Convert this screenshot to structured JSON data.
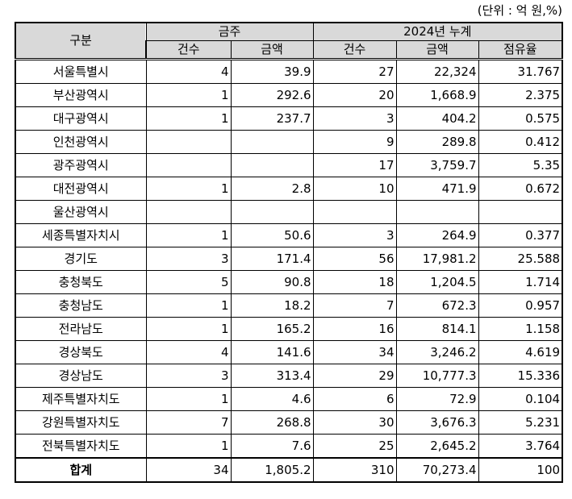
{
  "unit_note": "(단위 : 억 원,%)",
  "header": {
    "region": "구분",
    "group_week": "금주",
    "group_cum": "2024년 누계",
    "count": "건수",
    "amount": "금액",
    "share": "점유율"
  },
  "rows": [
    {
      "region": "서울특별시",
      "w_count": "4",
      "w_amount": "39.9",
      "c_count": "27",
      "c_amount": "22,324",
      "share": "31.767"
    },
    {
      "region": "부산광역시",
      "w_count": "1",
      "w_amount": "292.6",
      "c_count": "20",
      "c_amount": "1,668.9",
      "share": "2.375"
    },
    {
      "region": "대구광역시",
      "w_count": "1",
      "w_amount": "237.7",
      "c_count": "3",
      "c_amount": "404.2",
      "share": "0.575"
    },
    {
      "region": "인천광역시",
      "w_count": "",
      "w_amount": "",
      "c_count": "9",
      "c_amount": "289.8",
      "share": "0.412"
    },
    {
      "region": "광주광역시",
      "w_count": "",
      "w_amount": "",
      "c_count": "17",
      "c_amount": "3,759.7",
      "share": "5.35"
    },
    {
      "region": "대전광역시",
      "w_count": "1",
      "w_amount": "2.8",
      "c_count": "10",
      "c_amount": "471.9",
      "share": "0.672"
    },
    {
      "region": "울산광역시",
      "w_count": "",
      "w_amount": "",
      "c_count": "",
      "c_amount": "",
      "share": ""
    },
    {
      "region": "세종특별자치시",
      "w_count": "1",
      "w_amount": "50.6",
      "c_count": "3",
      "c_amount": "264.9",
      "share": "0.377"
    },
    {
      "region": "경기도",
      "w_count": "3",
      "w_amount": "171.4",
      "c_count": "56",
      "c_amount": "17,981.2",
      "share": "25.588"
    },
    {
      "region": "충청북도",
      "w_count": "5",
      "w_amount": "90.8",
      "c_count": "18",
      "c_amount": "1,204.5",
      "share": "1.714"
    },
    {
      "region": "충청남도",
      "w_count": "1",
      "w_amount": "18.2",
      "c_count": "7",
      "c_amount": "672.3",
      "share": "0.957"
    },
    {
      "region": "전라남도",
      "w_count": "1",
      "w_amount": "165.2",
      "c_count": "16",
      "c_amount": "814.1",
      "share": "1.158"
    },
    {
      "region": "경상북도",
      "w_count": "4",
      "w_amount": "141.6",
      "c_count": "34",
      "c_amount": "3,246.2",
      "share": "4.619"
    },
    {
      "region": "경상남도",
      "w_count": "3",
      "w_amount": "313.4",
      "c_count": "29",
      "c_amount": "10,777.3",
      "share": "15.336"
    },
    {
      "region": "제주특별자치도",
      "w_count": "1",
      "w_amount": "4.6",
      "c_count": "6",
      "c_amount": "72.9",
      "share": "0.104"
    },
    {
      "region": "강원특별자치도",
      "w_count": "7",
      "w_amount": "268.8",
      "c_count": "30",
      "c_amount": "3,676.3",
      "share": "5.231"
    },
    {
      "region": "전북특별자치도",
      "w_count": "1",
      "w_amount": "7.6",
      "c_count": "25",
      "c_amount": "2,645.2",
      "share": "3.764"
    }
  ],
  "total": {
    "region": "합계",
    "w_count": "34",
    "w_amount": "1,805.2",
    "c_count": "310",
    "c_amount": "70,273.4",
    "share": "100"
  }
}
